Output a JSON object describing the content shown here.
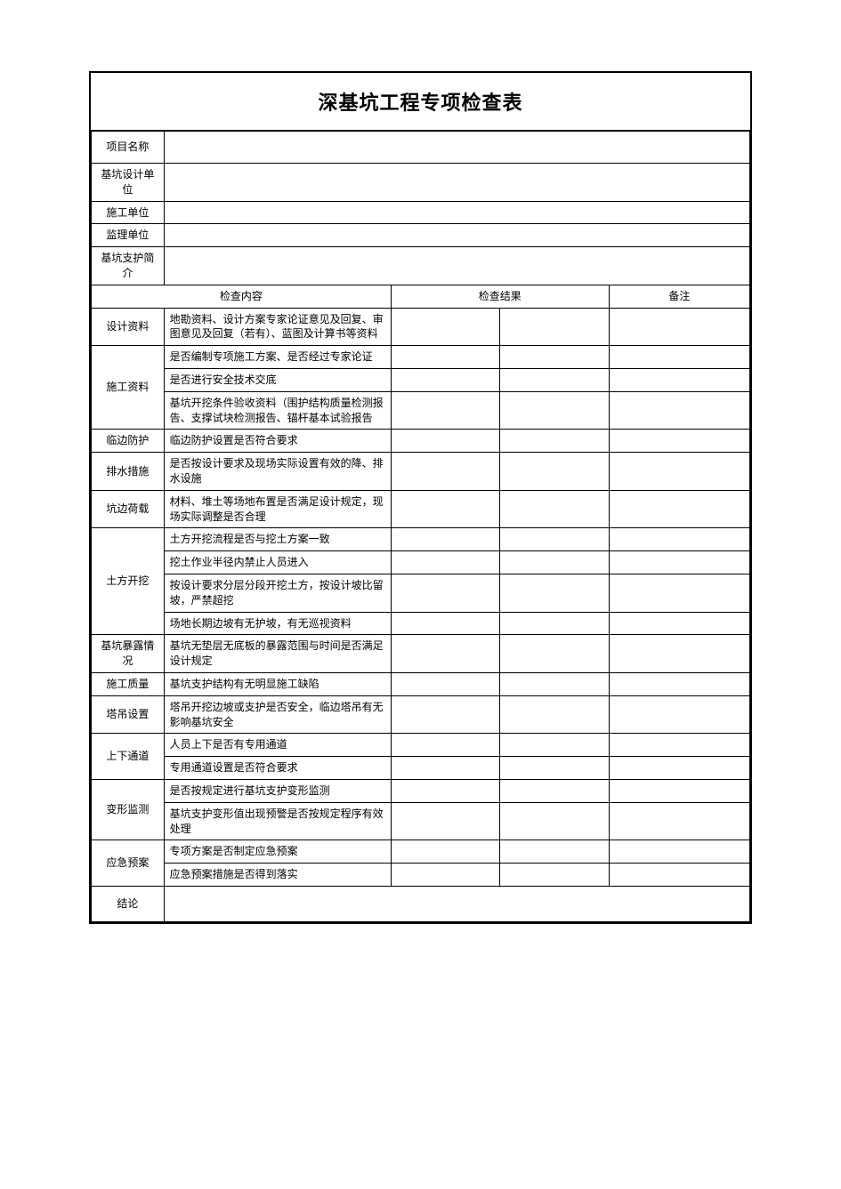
{
  "title": "深基坑工程专项检查表",
  "info_rows": [
    {
      "label": "项目名称",
      "value": ""
    },
    {
      "label": "基坑设计单位",
      "value": ""
    },
    {
      "label": "施工单位",
      "value": ""
    },
    {
      "label": "监理单位",
      "value": ""
    },
    {
      "label": "基坑支护简介",
      "value": ""
    }
  ],
  "header": {
    "content": "检查内容",
    "result": "检查结果",
    "note": "备注"
  },
  "sections": [
    {
      "category": "设计资料",
      "items": [
        "地勘资料、设计方案专家论证意见及回复、审图意见及回复（若有）、蓝图及计算书等资料"
      ]
    },
    {
      "category": "施工资料",
      "items": [
        "是否编制专项施工方案、是否经过专家论证",
        "是否进行安全技术交底",
        "基坑开挖条件验收资料（围护结构质量检测报告、支撑试块检测报告、锚杆基本试验报告"
      ]
    },
    {
      "category": "临边防护",
      "items": [
        "临边防护设置是否符合要求"
      ]
    },
    {
      "category": "排水措施",
      "items": [
        "是否按设计要求及现场实际设置有效的降、排水设施"
      ]
    },
    {
      "category": "坑边荷载",
      "items": [
        "材料、堆土等场地布置是否满足设计规定，现场实际调整是否合理"
      ]
    },
    {
      "category": "土方开挖",
      "items": [
        "土方开挖流程是否与挖土方案一致",
        "挖土作业半径内禁止人员进入",
        "按设计要求分层分段开挖土方，按设计坡比留坡，严禁超挖",
        "场地长期边坡有无护坡，有无巡视资料"
      ]
    },
    {
      "category": "基坑暴露情况",
      "items": [
        "基坑无垫层无底板的暴露范围与时间是否满足设计规定"
      ]
    },
    {
      "category": "施工质量",
      "items": [
        "基坑支护结构有无明显施工缺陷"
      ]
    },
    {
      "category": "塔吊设置",
      "items": [
        "塔吊开挖边坡或支护是否安全，临边塔吊有无影响基坑安全"
      ]
    },
    {
      "category": "上下通道",
      "items": [
        "人员上下是否有专用通道",
        "专用通道设置是否符合要求"
      ]
    },
    {
      "category": "变形监测",
      "items": [
        "是否按规定进行基坑支护变形监测",
        "基坑支护变形值出现预警是否按规定程序有效处理"
      ]
    },
    {
      "category": "应急预案",
      "items": [
        "专项方案是否制定应急预案",
        "应急预案措施是否得到落实"
      ]
    }
  ],
  "conclusion_label": "结论",
  "style": {
    "border_color": "#000000",
    "text_color": "#000000",
    "background_color": "#ffffff",
    "title_fontsize": 22,
    "body_fontsize": 12
  }
}
